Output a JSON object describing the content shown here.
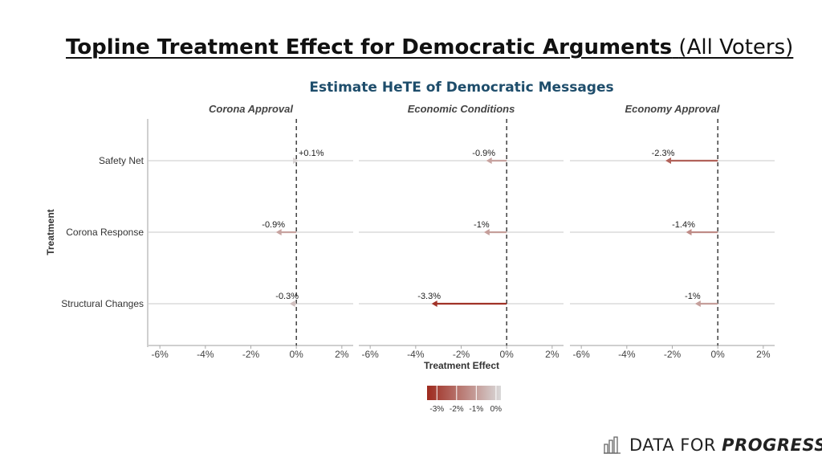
{
  "slide": {
    "title_bold": "Topline Treatment Effect for Democratic Arguments",
    "title_normal": "(All Voters)"
  },
  "chart_data": {
    "type": "arrow-dot",
    "title": "Estimate HeTE of Democratic Messages",
    "xlabel": "Treatment Effect",
    "ylabel": "Treatment",
    "xlim": [
      -6.5,
      2.5
    ],
    "xticks": [
      -6,
      -4,
      -2,
      0,
      2
    ],
    "xtick_labels": [
      "-6%",
      "-4%",
      "-2%",
      "0%",
      "2%"
    ],
    "categories": [
      "Safety Net",
      "Corona Response",
      "Structural Changes"
    ],
    "panels": [
      {
        "name": "Corona Approval",
        "values": [
          0.1,
          -0.9,
          -0.3
        ],
        "labels": [
          "+0.1%",
          "-0.9%",
          "-0.3%"
        ]
      },
      {
        "name": "Economic Conditions",
        "values": [
          -0.9,
          -1.0,
          -3.3
        ],
        "labels": [
          "-0.9%",
          "-1%",
          "-3.3%"
        ]
      },
      {
        "name": "Economy Approval",
        "values": [
          -2.3,
          -1.4,
          -1.0
        ],
        "labels": [
          "-2.3%",
          "-1.4%",
          "-1%"
        ]
      }
    ],
    "colorbar": {
      "min": -3.5,
      "max": 0.25,
      "ticks": [
        -3,
        -2,
        -1,
        0
      ],
      "tick_labels": [
        "-3%",
        "-2%",
        "-1%",
        "0%"
      ],
      "color_low": "#9e2a1e",
      "color_high": "#d9d9d9"
    },
    "reference_line": 0
  },
  "logo": {
    "text_regular": "DATA FOR",
    "text_italic": "PROGRESS"
  }
}
